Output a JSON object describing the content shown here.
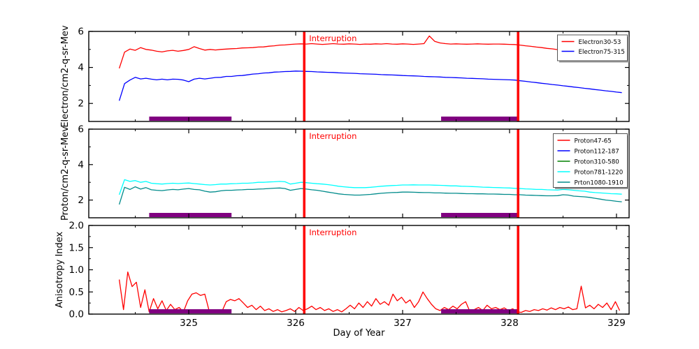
{
  "figure": {
    "background": "#ffffff",
    "xlabel": "Day of Year",
    "xlim": [
      324.065,
      329.118
    ],
    "xticks": [
      325,
      326,
      327,
      328,
      329
    ],
    "interruption_label": "Interruption",
    "interruption_color": "#ff0000",
    "interruption_x": [
      326.08,
      328.08
    ],
    "bar_color": "#800080",
    "bar_intervals": [
      [
        324.63,
        325.4
      ],
      [
        327.36,
        328.08
      ]
    ]
  },
  "chart_data": [
    {
      "id": "electron-flux",
      "type": "line",
      "ylabel": "Electron/cm2-q-sr-Mev",
      "ylim": [
        1,
        6
      ],
      "yticks": [
        2,
        4,
        6
      ],
      "yminor": [
        3,
        5
      ],
      "ytick_decimals": 0,
      "legend_position": "upper right",
      "series": [
        {
          "name": "Electron30-53",
          "color": "#ff0000",
          "x0": 324.35,
          "dx": 0.05,
          "values": [
            3.95,
            4.85,
            5.02,
            4.95,
            5.1,
            5.0,
            4.96,
            4.9,
            4.86,
            4.92,
            4.95,
            4.9,
            4.94,
            5.0,
            5.15,
            5.05,
            4.96,
            5.0,
            4.97,
            5.0,
            5.02,
            5.04,
            5.05,
            5.08,
            5.09,
            5.1,
            5.13,
            5.14,
            5.18,
            5.2,
            5.24,
            5.25,
            5.28,
            5.3,
            5.31,
            5.3,
            5.32,
            5.3,
            5.28,
            5.3,
            5.32,
            5.3,
            5.29,
            5.31,
            5.3,
            5.28,
            5.3,
            5.29,
            5.31,
            5.3,
            5.32,
            5.3,
            5.29,
            5.31,
            5.3,
            5.28,
            5.3,
            5.32,
            5.75,
            5.45,
            5.36,
            5.32,
            5.3,
            5.31,
            5.3,
            5.29,
            5.3,
            5.31,
            5.3,
            5.29,
            5.3,
            5.3,
            5.29,
            5.28,
            5.27,
            5.24,
            5.2,
            5.17,
            5.13,
            5.1,
            5.06,
            5.03,
            4.99,
            4.96,
            4.92,
            4.89,
            4.85,
            4.82,
            4.78,
            4.74,
            4.7,
            4.66,
            4.62,
            4.58,
            4.55
          ]
        },
        {
          "name": "Electron75-315",
          "color": "#0000ff",
          "x0": 324.35,
          "dx": 0.05,
          "values": [
            2.15,
            3.1,
            3.3,
            3.45,
            3.36,
            3.4,
            3.35,
            3.31,
            3.35,
            3.31,
            3.35,
            3.34,
            3.3,
            3.21,
            3.35,
            3.4,
            3.36,
            3.4,
            3.44,
            3.45,
            3.5,
            3.5,
            3.54,
            3.55,
            3.59,
            3.63,
            3.65,
            3.69,
            3.7,
            3.74,
            3.75,
            3.77,
            3.78,
            3.8,
            3.79,
            3.78,
            3.77,
            3.75,
            3.74,
            3.73,
            3.72,
            3.7,
            3.69,
            3.68,
            3.67,
            3.65,
            3.64,
            3.63,
            3.62,
            3.6,
            3.59,
            3.58,
            3.57,
            3.55,
            3.54,
            3.53,
            3.52,
            3.5,
            3.49,
            3.48,
            3.47,
            3.45,
            3.44,
            3.43,
            3.42,
            3.4,
            3.39,
            3.38,
            3.37,
            3.35,
            3.34,
            3.33,
            3.32,
            3.31,
            3.3,
            3.26,
            3.23,
            3.19,
            3.16,
            3.12,
            3.09,
            3.05,
            3.02,
            2.98,
            2.95,
            2.91,
            2.88,
            2.84,
            2.81,
            2.77,
            2.74,
            2.7,
            2.67,
            2.63,
            2.6
          ]
        }
      ]
    },
    {
      "id": "proton-flux",
      "type": "line",
      "ylabel": "Proton/cm2-q-sr-Mev",
      "ylim": [
        1,
        6
      ],
      "yticks": [
        2,
        4,
        6
      ],
      "yminor": [
        3,
        5
      ],
      "ytick_decimals": 0,
      "legend_position": "upper right",
      "series": [
        {
          "name": "Proton47-65",
          "color": "#ff0000",
          "x0": 324.35,
          "dx": 0.05,
          "values": []
        },
        {
          "name": "Proton112-187",
          "color": "#0000ff",
          "x0": 324.35,
          "dx": 0.05,
          "values": []
        },
        {
          "name": "Proton310-580",
          "color": "#008000",
          "x0": 324.35,
          "dx": 0.05,
          "values": []
        },
        {
          "name": "Proton781-1220",
          "color": "#00ffff",
          "x0": 324.35,
          "dx": 0.05,
          "values": [
            2.3,
            3.15,
            3.05,
            3.1,
            3.0,
            3.05,
            2.95,
            2.92,
            2.9,
            2.93,
            2.95,
            2.93,
            2.95,
            2.96,
            2.93,
            2.9,
            2.87,
            2.85,
            2.87,
            2.9,
            2.9,
            2.92,
            2.93,
            2.95,
            2.95,
            2.97,
            3.0,
            3.0,
            3.02,
            3.03,
            3.05,
            3.03,
            2.9,
            2.95,
            3.0,
            2.98,
            2.95,
            2.92,
            2.9,
            2.87,
            2.83,
            2.78,
            2.75,
            2.72,
            2.7,
            2.7,
            2.7,
            2.72,
            2.75,
            2.78,
            2.8,
            2.82,
            2.83,
            2.85,
            2.85,
            2.86,
            2.85,
            2.85,
            2.85,
            2.84,
            2.83,
            2.82,
            2.8,
            2.8,
            2.78,
            2.77,
            2.76,
            2.75,
            2.73,
            2.72,
            2.71,
            2.7,
            2.69,
            2.68,
            2.66,
            2.65,
            2.63,
            2.62,
            2.6,
            2.6,
            2.58,
            2.57,
            2.56,
            2.6,
            2.58,
            2.55,
            2.52,
            2.5,
            2.45,
            2.42,
            2.4,
            2.38,
            2.36,
            2.35,
            2.33
          ]
        },
        {
          "name": "Prton1080-1910",
          "color": "#008b8b",
          "x0": 324.35,
          "dx": 0.05,
          "values": [
            1.75,
            2.72,
            2.6,
            2.75,
            2.62,
            2.7,
            2.58,
            2.55,
            2.53,
            2.57,
            2.6,
            2.58,
            2.62,
            2.65,
            2.6,
            2.58,
            2.5,
            2.45,
            2.47,
            2.52,
            2.55,
            2.55,
            2.57,
            2.58,
            2.6,
            2.6,
            2.62,
            2.63,
            2.65,
            2.67,
            2.68,
            2.65,
            2.55,
            2.6,
            2.65,
            2.62,
            2.58,
            2.55,
            2.5,
            2.45,
            2.4,
            2.35,
            2.32,
            2.3,
            2.28,
            2.28,
            2.3,
            2.32,
            2.35,
            2.38,
            2.4,
            2.42,
            2.43,
            2.45,
            2.45,
            2.44,
            2.43,
            2.42,
            2.42,
            2.4,
            2.4,
            2.39,
            2.38,
            2.38,
            2.37,
            2.36,
            2.36,
            2.35,
            2.35,
            2.34,
            2.34,
            2.33,
            2.32,
            2.32,
            2.3,
            2.3,
            2.28,
            2.27,
            2.26,
            2.25,
            2.24,
            2.24,
            2.25,
            2.3,
            2.28,
            2.22,
            2.2,
            2.18,
            2.15,
            2.1,
            2.05,
            2.0,
            1.97,
            1.93,
            1.9
          ]
        }
      ]
    },
    {
      "id": "anisotropy",
      "type": "line",
      "ylabel": "Anisotropy Index",
      "ylim": [
        0,
        2
      ],
      "yticks": [
        0,
        0.5,
        1,
        1.5,
        2
      ],
      "yminor": [
        0.25,
        0.75,
        1.25,
        1.75
      ],
      "ytick_decimals": 1,
      "legend_position": "none",
      "series": [
        {
          "name": "AnisotropyIndex",
          "color": "#ff0000",
          "x0": 324.35,
          "dx": 0.04,
          "values": [
            0.78,
            0.1,
            0.95,
            0.62,
            0.72,
            0.15,
            0.55,
            0.05,
            0.35,
            0.12,
            0.3,
            0.08,
            0.22,
            0.1,
            0.15,
            0.05,
            0.3,
            0.45,
            0.48,
            0.42,
            0.45,
            0.08,
            0.05,
            0.1,
            0.06,
            0.28,
            0.33,
            0.3,
            0.35,
            0.25,
            0.15,
            0.2,
            0.1,
            0.18,
            0.08,
            0.12,
            0.06,
            0.1,
            0.05,
            0.08,
            0.12,
            0.06,
            0.15,
            0.08,
            0.12,
            0.18,
            0.1,
            0.15,
            0.08,
            0.12,
            0.06,
            0.1,
            0.05,
            0.12,
            0.2,
            0.12,
            0.25,
            0.15,
            0.28,
            0.18,
            0.35,
            0.22,
            0.28,
            0.2,
            0.45,
            0.3,
            0.38,
            0.25,
            0.32,
            0.15,
            0.28,
            0.5,
            0.35,
            0.22,
            0.12,
            0.08,
            0.15,
            0.1,
            0.18,
            0.12,
            0.22,
            0.28,
            0.05,
            0.1,
            0.15,
            0.08,
            0.2,
            0.12,
            0.15,
            0.1,
            0.14,
            0.08,
            0.12,
            0.05,
            0.04,
            0.08,
            0.06,
            0.1,
            0.08,
            0.12,
            0.09,
            0.14,
            0.1,
            0.15,
            0.12,
            0.16,
            0.1,
            0.12,
            0.63,
            0.14,
            0.2,
            0.12,
            0.22,
            0.15,
            0.25,
            0.1,
            0.28,
            0.08
          ]
        }
      ]
    }
  ]
}
